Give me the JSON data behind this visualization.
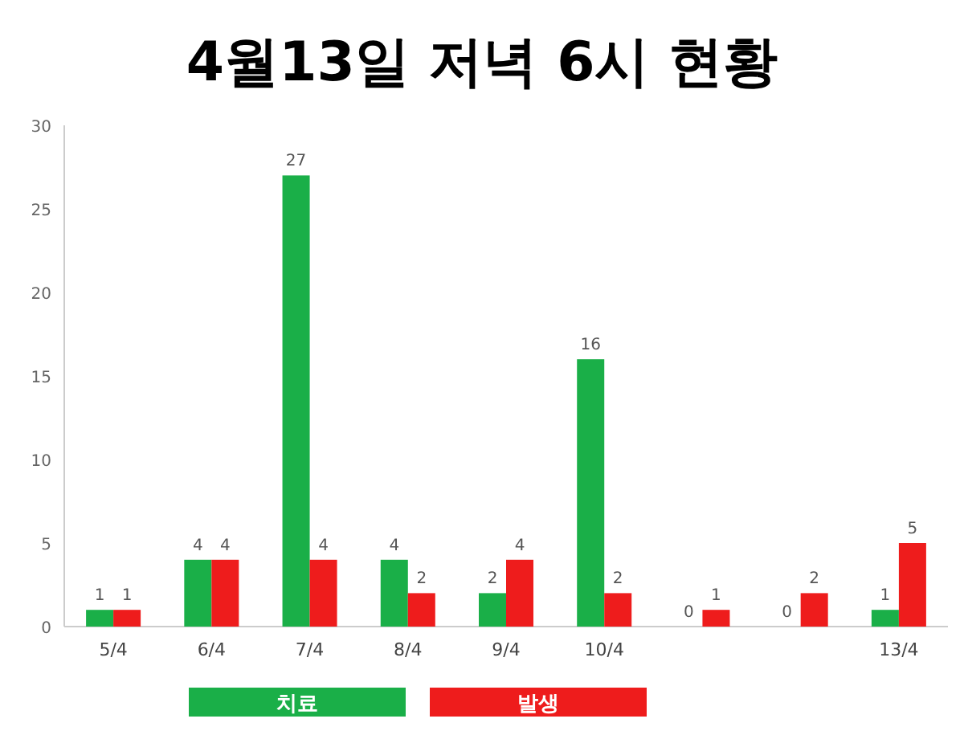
{
  "chart_data": {
    "type": "bar",
    "title": "4월13일 저녁 6시 현황",
    "categories": [
      "5/4",
      "6/4",
      "7/4",
      "8/4",
      "9/4",
      "10/4",
      null,
      null,
      "13/4"
    ],
    "series": [
      {
        "name": "치료",
        "color": "#1aaf48",
        "values": [
          1,
          4,
          27,
          4,
          2,
          16,
          0,
          0,
          1
        ]
      },
      {
        "name": "발생",
        "color": "#ee1c1c",
        "values": [
          1,
          4,
          4,
          2,
          4,
          2,
          1,
          2,
          5
        ]
      }
    ],
    "ylim": [
      0,
      30
    ],
    "yticks": [
      0,
      5,
      10,
      15,
      20,
      25,
      30
    ],
    "data_labels": true,
    "legend": "bottom",
    "grid": false
  }
}
